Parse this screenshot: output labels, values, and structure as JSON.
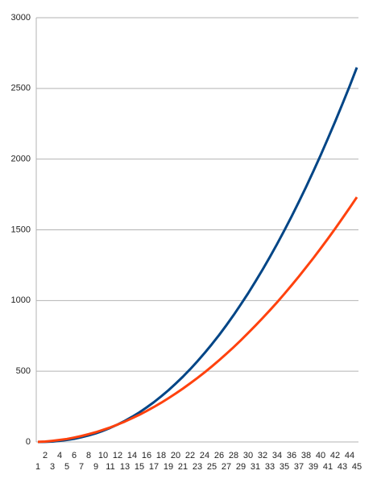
{
  "chart_data": {
    "type": "line",
    "categories": [
      1,
      2,
      3,
      4,
      5,
      6,
      7,
      8,
      9,
      10,
      11,
      12,
      13,
      14,
      15,
      16,
      17,
      18,
      19,
      20,
      21,
      22,
      23,
      24,
      25,
      26,
      27,
      28,
      29,
      30,
      31,
      32,
      33,
      34,
      35,
      36,
      37,
      38,
      39,
      40,
      41,
      42,
      43,
      44,
      45
    ],
    "series": [
      {
        "color": "#004586",
        "values": [
          0,
          1,
          3,
          8,
          14,
          22,
          33,
          46,
          61,
          79,
          100,
          123,
          149,
          178,
          209,
          244,
          281,
          322,
          365,
          412,
          461,
          514,
          570,
          629,
          691,
          756,
          825,
          897,
          973,
          1051,
          1134,
          1219,
          1308,
          1400,
          1496,
          1595,
          1698,
          1804,
          1914,
          2027,
          2145,
          2265,
          2389,
          2516,
          2648
        ]
      },
      {
        "color": "#ff420e",
        "values": [
          1,
          3,
          8,
          14,
          21,
          31,
          42,
          55,
          69,
          86,
          103,
          123,
          144,
          168,
          192,
          219,
          247,
          277,
          309,
          342,
          377,
          414,
          452,
          492,
          534,
          578,
          623,
          670,
          719,
          770,
          822,
          876,
          931,
          988,
          1047,
          1108,
          1170,
          1235,
          1300,
          1368,
          1437,
          1508,
          1581,
          1655,
          1731
        ]
      }
    ],
    "ylim": [
      0,
      3000
    ],
    "yticks": [
      0,
      500,
      1000,
      1500,
      2000,
      2500,
      3000
    ],
    "grid": true
  }
}
